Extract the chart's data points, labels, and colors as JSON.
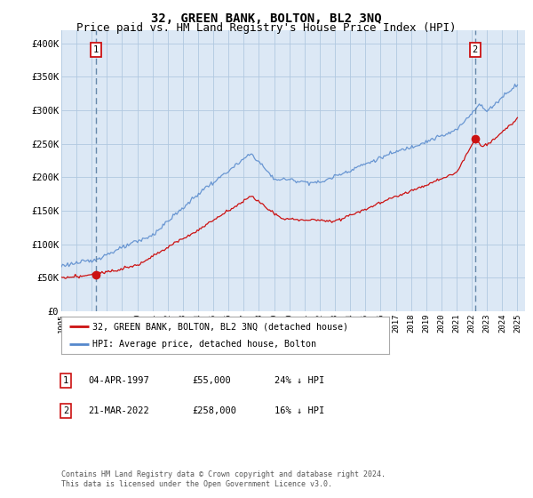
{
  "title": "32, GREEN BANK, BOLTON, BL2 3NQ",
  "subtitle": "Price paid vs. HM Land Registry's House Price Index (HPI)",
  "ylim": [
    0,
    420000
  ],
  "yticks": [
    0,
    50000,
    100000,
    150000,
    200000,
    250000,
    300000,
    350000,
    400000
  ],
  "ytick_labels": [
    "£0",
    "£50K",
    "£100K",
    "£150K",
    "£200K",
    "£250K",
    "£300K",
    "£350K",
    "£400K"
  ],
  "xlim": [
    1995.0,
    2025.5
  ],
  "background_color": "#ffffff",
  "plot_bg": "#dce8f5",
  "grid_color": "#b0c8e0",
  "hpi_color": "#5588cc",
  "price_color": "#cc1111",
  "marker_color": "#cc1111",
  "vline_color": "#6688aa",
  "sale1_x": 1997.27,
  "sale1_y": 55000,
  "sale2_x": 2022.22,
  "sale2_y": 258000,
  "legend_line1": "32, GREEN BANK, BOLTON, BL2 3NQ (detached house)",
  "legend_line2": "HPI: Average price, detached house, Bolton",
  "table_row1": [
    "1",
    "04-APR-1997",
    "£55,000",
    "24% ↓ HPI"
  ],
  "table_row2": [
    "2",
    "21-MAR-2022",
    "£258,000",
    "16% ↓ HPI"
  ],
  "footnote": "Contains HM Land Registry data © Crown copyright and database right 2024.\nThis data is licensed under the Open Government Licence v3.0.",
  "title_fontsize": 10,
  "subtitle_fontsize": 9
}
